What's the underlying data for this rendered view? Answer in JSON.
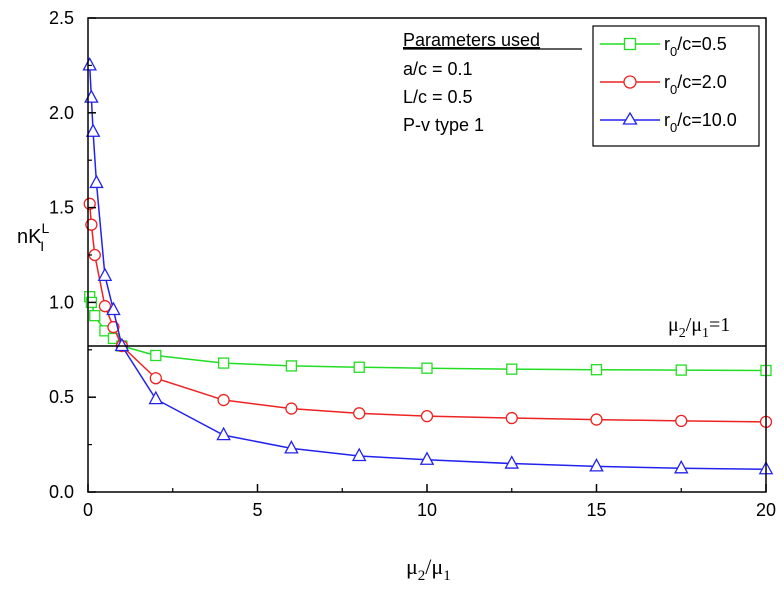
{
  "chart_data": {
    "type": "line",
    "x_axis": {
      "label_main": "μ",
      "label_sub1": "2",
      "label_sep": "/μ",
      "label_sub2": "1",
      "range": [
        0,
        20
      ],
      "ticks": [
        0,
        5,
        10,
        15,
        20
      ],
      "tick_labels": [
        "0",
        "5",
        "10",
        "15",
        "20"
      ]
    },
    "y_axis": {
      "label_main": "nK",
      "label_sup": "L",
      "label_sub": "I",
      "range": [
        0,
        2.5
      ],
      "ticks": [
        0,
        0.5,
        1,
        1.5,
        2,
        2.5
      ],
      "tick_labels": [
        "0.0",
        "0.5",
        "1.0",
        "1.5",
        "2.0",
        "2.5"
      ]
    },
    "grid": false,
    "legend_position": "top-right",
    "annotation": {
      "heading": "Parameters used",
      "lines": [
        "a/c = 0.1",
        "L/c = 0.5",
        "P-v type 1"
      ]
    },
    "reference_line": {
      "y": 0.77,
      "label_main": "μ",
      "label_sub1": "2",
      "label_sep": "/μ",
      "label_sub2": "1",
      "label_tail": "=1"
    },
    "series": [
      {
        "name_pre": "r",
        "name_sub": "0",
        "name_post": "/c=0.5",
        "color": "#22dd22",
        "marker": "square",
        "points": [
          [
            0.05,
            1.03
          ],
          [
            0.1,
            1.0
          ],
          [
            0.2,
            0.93
          ],
          [
            0.5,
            0.85
          ],
          [
            0.75,
            0.81
          ],
          [
            1,
            0.77
          ],
          [
            2,
            0.72
          ],
          [
            4,
            0.68
          ],
          [
            6,
            0.665
          ],
          [
            8,
            0.658
          ],
          [
            10,
            0.653
          ],
          [
            12.5,
            0.648
          ],
          [
            15,
            0.645
          ],
          [
            17.5,
            0.643
          ],
          [
            20,
            0.641
          ]
        ]
      },
      {
        "name_pre": "r",
        "name_sub": "0",
        "name_post": "/c=2.0",
        "color": "#ee2222",
        "marker": "circle",
        "points": [
          [
            0.05,
            1.52
          ],
          [
            0.1,
            1.41
          ],
          [
            0.2,
            1.25
          ],
          [
            0.5,
            0.98
          ],
          [
            0.75,
            0.87
          ],
          [
            1,
            0.77
          ],
          [
            2,
            0.6
          ],
          [
            4,
            0.485
          ],
          [
            6,
            0.44
          ],
          [
            8,
            0.415
          ],
          [
            10,
            0.4
          ],
          [
            12.5,
            0.39
          ],
          [
            15,
            0.382
          ],
          [
            17.5,
            0.375
          ],
          [
            20,
            0.37
          ]
        ]
      },
      {
        "name_pre": "r",
        "name_sub": "0",
        "name_post": "/c=10.0",
        "color": "#2222ee",
        "marker": "triangle",
        "points": [
          [
            0.05,
            2.25
          ],
          [
            0.1,
            2.08
          ],
          [
            0.15,
            1.9
          ],
          [
            0.25,
            1.63
          ],
          [
            0.5,
            1.14
          ],
          [
            0.75,
            0.96
          ],
          [
            1,
            0.77
          ],
          [
            2,
            0.49
          ],
          [
            4,
            0.3
          ],
          [
            6,
            0.23
          ],
          [
            8,
            0.19
          ],
          [
            10,
            0.17
          ],
          [
            12.5,
            0.15
          ],
          [
            15,
            0.135
          ],
          [
            17.5,
            0.125
          ],
          [
            20,
            0.12
          ]
        ]
      }
    ]
  }
}
